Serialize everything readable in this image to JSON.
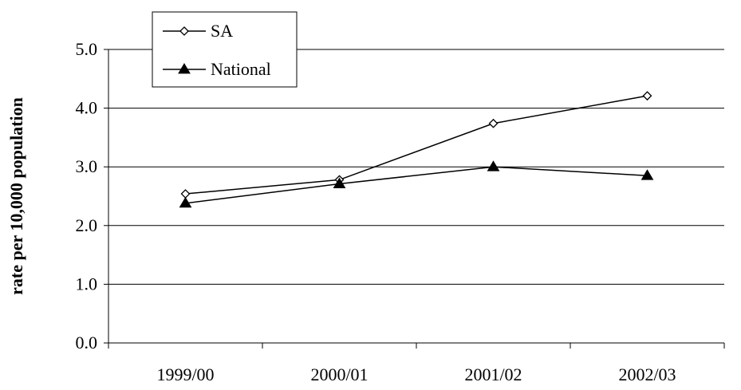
{
  "chart_data": {
    "type": "line",
    "categories": [
      "1999/00",
      "2000/01",
      "2001/02",
      "2002/03"
    ],
    "series": [
      {
        "name": "SA",
        "values": [
          2.54,
          2.78,
          3.74,
          4.21
        ],
        "marker": "diamond-open",
        "color": "#000000"
      },
      {
        "name": "National",
        "values": [
          2.38,
          2.71,
          3.0,
          2.85
        ],
        "marker": "triangle-filled",
        "color": "#000000"
      }
    ],
    "title": "",
    "xlabel": "",
    "ylabel": "rate per 10,000 population",
    "ylim": [
      0,
      5
    ],
    "yticks": [
      "0.0",
      "1.0",
      "2.0",
      "3.0",
      "4.0",
      "5.0"
    ],
    "grid": "horizontal",
    "legend": "top-left"
  }
}
